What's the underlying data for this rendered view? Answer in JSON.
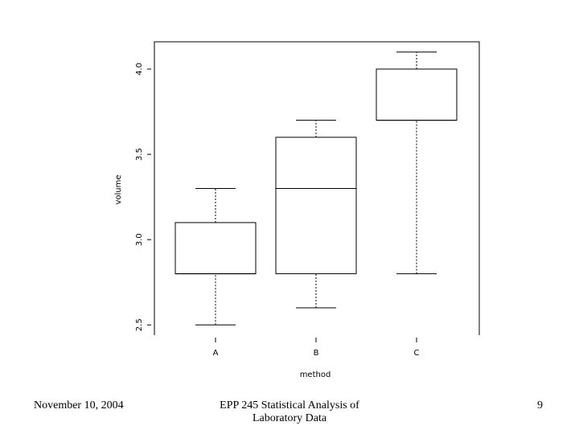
{
  "chart_data": {
    "type": "box",
    "x_label": "method",
    "y_label": "volume",
    "categories": [
      "A",
      "B",
      "C"
    ],
    "boxes": [
      {
        "low": 2.5,
        "q1": 2.8,
        "median": 2.8,
        "q3": 3.1,
        "high": 3.3
      },
      {
        "low": 2.6,
        "q1": 2.8,
        "median": 3.3,
        "q3": 3.6,
        "high": 3.7
      },
      {
        "low": 2.8,
        "q1": 3.7,
        "median": 3.7,
        "q3": 4.0,
        "high": 4.1
      }
    ],
    "color": "#000000",
    "ylim": [
      2.44,
      4.16
    ],
    "yticks": [
      2.5,
      {
        "value": 3,
        "label": "3.0"
      },
      3.5,
      {
        "value": 4,
        "label": "4.0"
      }
    ]
  },
  "footer": {
    "date": "November 10, 2004",
    "title": "EPP 245 Statistical Analysis of Laboratory Data",
    "page": "9"
  }
}
